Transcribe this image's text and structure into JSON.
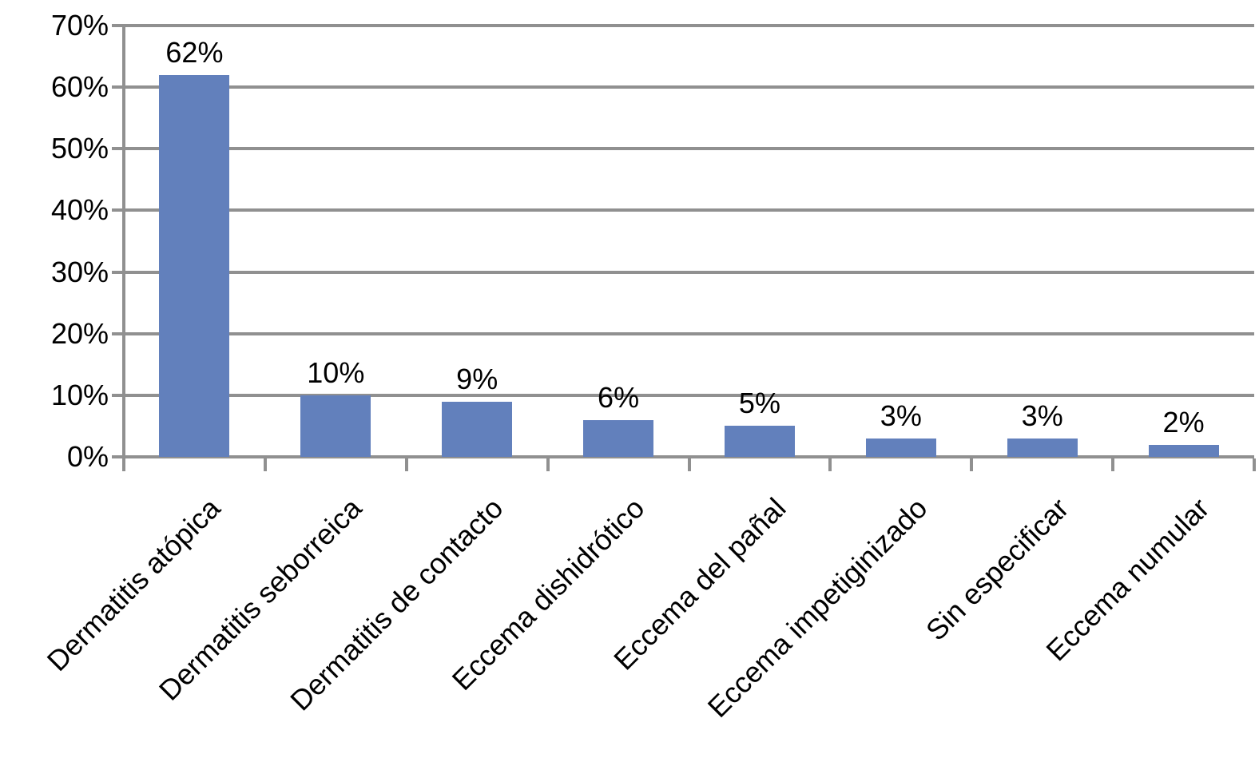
{
  "chart_data": {
    "type": "bar",
    "title": "",
    "xlabel": "",
    "ylabel": "",
    "categories": [
      "Dermatitis atópica",
      "Dermatitis seborreica",
      "Dermatitis de contacto",
      "Eccema dishidrótico",
      "Eccema del pañal",
      "Eccema impetiginizado",
      "Sin especificar",
      "Eccema numular"
    ],
    "values": [
      62,
      10,
      9,
      6,
      5,
      3,
      3,
      2
    ],
    "data_labels": [
      "62%",
      "10%",
      "9%",
      "6%",
      "5%",
      "3%",
      "3%",
      "2%"
    ],
    "y_tick_labels": [
      "0%",
      "10%",
      "20%",
      "30%",
      "40%",
      "50%",
      "60%",
      "70%"
    ],
    "ylim": [
      0,
      70
    ],
    "y_tick_step": 10,
    "grid": true,
    "legend_position": "none",
    "colors": {
      "bar": "#6280BC",
      "grid": "#909090",
      "text": "#000000",
      "background": "#FFFFFF"
    }
  }
}
